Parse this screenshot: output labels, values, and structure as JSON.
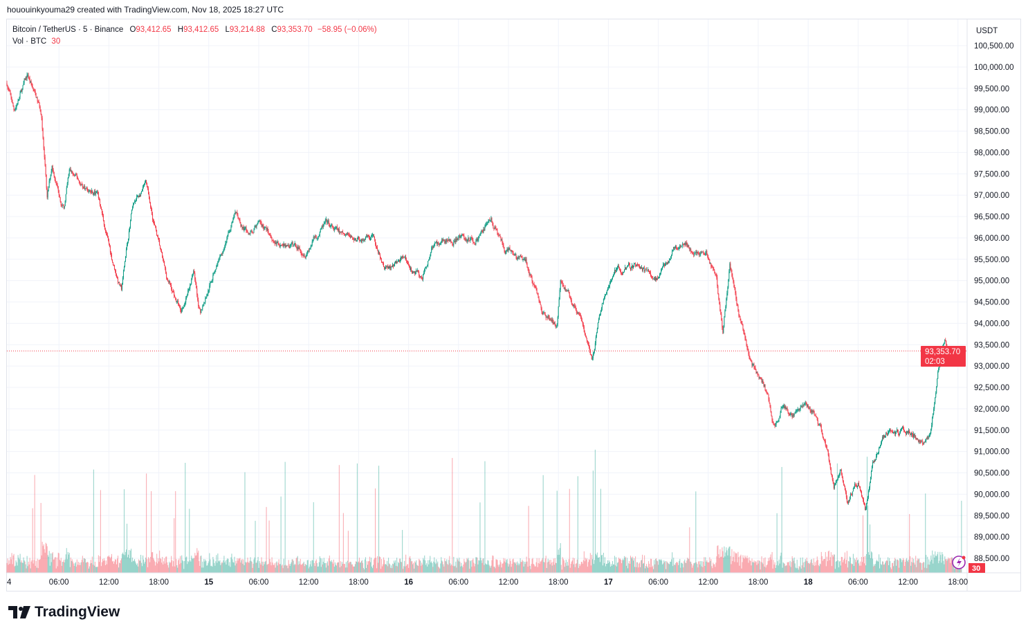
{
  "credit": "hououinkyouma29 created with TradingView.com, Nov 18, 2025 18:27 UTC",
  "legend": {
    "symbol": "Bitcoin / TetherUS · 5 · Binance",
    "o_label": "O",
    "o": "93,412.65",
    "h_label": "H",
    "h": "93,412.65",
    "l_label": "L",
    "l": "93,214.88",
    "c_label": "C",
    "c": "93,353.70",
    "change": "−58.95 (−0.06%)",
    "vol_label": "Vol · BTC",
    "vol": "30"
  },
  "currency": "USDT",
  "last_price_label": "93,353.70",
  "countdown": "02:03",
  "volume_badge": "30",
  "brand": "TradingView",
  "colors": {
    "up": "#089981",
    "down": "#F23645",
    "grid": "#f0f3fa"
  },
  "chart_data": {
    "type": "candlestick",
    "interval": "5 min",
    "ylim": [
      88250,
      100750
    ],
    "grid": true,
    "y_ticks": [
      "100,500.00",
      "100,000.00",
      "99,500.00",
      "99,000.00",
      "98,500.00",
      "98,000.00",
      "97,500.00",
      "97,000.00",
      "96,500.00",
      "96,000.00",
      "95,500.00",
      "95,000.00",
      "94,500.00",
      "94,000.00",
      "93,500.00",
      "93,000.00",
      "92,500.00",
      "92,000.00",
      "91,500.00",
      "91,000.00",
      "90,500.00",
      "90,000.00",
      "89,500.00",
      "89,000.00",
      "88,500.00"
    ],
    "x_ticks": [
      "4",
      "06:00",
      "12:00",
      "18:00",
      "15",
      "06:00",
      "12:00",
      "18:00",
      "16",
      "06:00",
      "12:00",
      "18:00",
      "17",
      "06:00",
      "12:00",
      "18:00",
      "18",
      "06:00",
      "12:00",
      "18:00"
    ],
    "last_price": 93353.7,
    "price_path": [
      [
        "11-13 23:45",
        99625
      ],
      [
        "11-14 00:35",
        98980
      ],
      [
        "11-14 02:15",
        99790
      ],
      [
        "11-14 03:55",
        98900
      ],
      [
        "11-14 04:35",
        96870
      ],
      [
        "11-14 05:10",
        97680
      ],
      [
        "11-14 06:35",
        96700
      ],
      [
        "11-14 07:15",
        97520
      ],
      [
        "11-14 08:55",
        97200
      ],
      [
        "11-14 10:35",
        97030
      ],
      [
        "11-14 12:15",
        95580
      ],
      [
        "11-14 13:30",
        94770
      ],
      [
        "11-14 14:45",
        96700
      ],
      [
        "11-14 16:25",
        97200
      ],
      [
        "11-14 17:35",
        96220
      ],
      [
        "11-14 18:50",
        95090
      ],
      [
        "11-14 20:40",
        94280
      ],
      [
        "11-14 22:10",
        95250
      ],
      [
        "11-14 23:00",
        94200
      ],
      [
        "11-15 00:40",
        95250
      ],
      [
        "11-15 03:10",
        96550
      ],
      [
        "11-15 04:50",
        96060
      ],
      [
        "11-15 06:05",
        96390
      ],
      [
        "11-15 08:10",
        95900
      ],
      [
        "11-15 11:30",
        95740
      ],
      [
        "11-15 14:00",
        96300
      ],
      [
        "11-15 16:30",
        95980
      ],
      [
        "11-15 19:50",
        95900
      ],
      [
        "11-15 21:05",
        95250
      ],
      [
        "11-15 23:10",
        95500
      ],
      [
        "11-16 01:40",
        95010
      ],
      [
        "11-16 02:50",
        95820
      ],
      [
        "11-16 05:45",
        95980
      ],
      [
        "11-16 08:15",
        95980
      ],
      [
        "11-16 09:55",
        96470
      ],
      [
        "11-16 11:35",
        95660
      ],
      [
        "11-16 14:05",
        95420
      ],
      [
        "11-16 16:10",
        94280
      ],
      [
        "11-16 17:50",
        93960
      ],
      [
        "11-16 18:15",
        95090
      ],
      [
        "11-16 20:20",
        94280
      ],
      [
        "11-16 22:00",
        93150
      ],
      [
        "11-16 23:15",
        94440
      ],
      [
        "11-17 00:55",
        95250
      ],
      [
        "11-17 03:25",
        95330
      ],
      [
        "11-17 05:55",
        95010
      ],
      [
        "11-17 08:00",
        95820
      ],
      [
        "11-17 10:05",
        95740
      ],
      [
        "11-17 11:45",
        95660
      ],
      [
        "11-17 13:00",
        95090
      ],
      [
        "11-17 13:45",
        93800
      ],
      [
        "11-17 14:35",
        95420
      ],
      [
        "11-17 15:50",
        94120
      ],
      [
        "11-17 16:40",
        93470
      ],
      [
        "11-17 17:30",
        92990
      ],
      [
        "11-17 18:45",
        92500
      ],
      [
        "11-17 20:00",
        91530
      ],
      [
        "11-17 20:50",
        92010
      ],
      [
        "11-17 22:30",
        91850
      ],
      [
        "11-17 23:45",
        92170
      ],
      [
        "11-18 01:00",
        91850
      ],
      [
        "11-18 02:15",
        91040
      ],
      [
        "11-18 03:05",
        90230
      ],
      [
        "11-18 03:55",
        90720
      ],
      [
        "11-18 04:45",
        89910
      ],
      [
        "11-18 06:00",
        90230
      ],
      [
        "11-18 06:50",
        89590
      ],
      [
        "11-18 07:40",
        90560
      ],
      [
        "11-18 08:55",
        91370
      ],
      [
        "11-18 11:00",
        91450
      ],
      [
        "11-18 12:40",
        91450
      ],
      [
        "11-18 13:55",
        91200
      ],
      [
        "11-18 14:45",
        91530
      ],
      [
        "11-18 15:35",
        92820
      ],
      [
        "11-18 16:25",
        93630
      ],
      [
        "11-18 17:15",
        93150
      ],
      [
        "11-18 18:05",
        93400
      ],
      [
        "11-18 18:25",
        93353.7
      ]
    ]
  }
}
